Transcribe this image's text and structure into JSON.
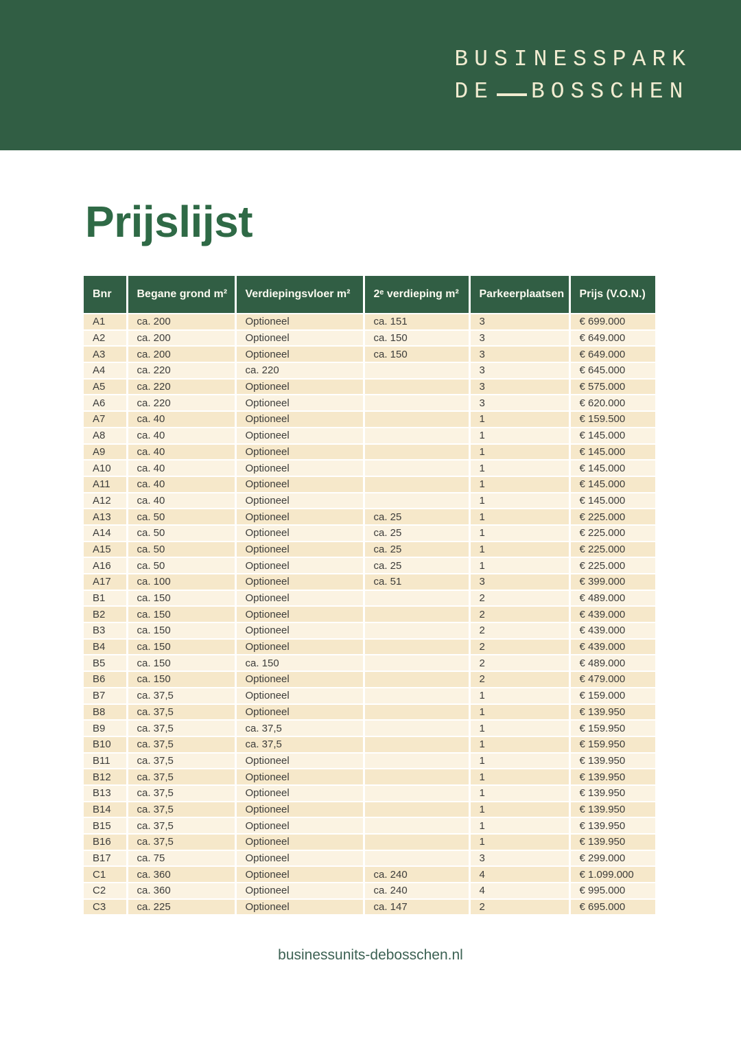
{
  "brand": {
    "line1": "BUSINESSPARK",
    "line2_prefix": "DE",
    "line2_suffix": "BOSSCHEN"
  },
  "page": {
    "title": "Prijslijst",
    "footer_link": "businessunits-debosschen.nl"
  },
  "colors": {
    "band_green": "#315e44",
    "logo_cream": "#f1ecd1",
    "title_green": "#2f6a46",
    "row_stripe_dark": "#f6e8ca",
    "row_stripe_light": "#fbf3e2",
    "header_text": "#fbfaf0",
    "body_text": "#3c3c3a",
    "footer_green": "#3c6153"
  },
  "table": {
    "column_keys": [
      "bnr",
      "begane-grond-m2",
      "verdiepingsvloer-m2",
      "tweede-verdieping-m2",
      "parkeerplaatsen",
      "prijs-von"
    ],
    "columns": [
      "Bnr",
      "Begane grond m²",
      "Verdiepingsvloer m²",
      "2ᵉ verdieping m²",
      "Parkeerplaatsen",
      "Prijs (V.O.N.)"
    ],
    "rows": [
      [
        "A1",
        "ca. 200",
        "Optioneel",
        "ca. 151",
        "3",
        "€ 699.000"
      ],
      [
        "A2",
        "ca. 200",
        "Optioneel",
        "ca. 150",
        "3",
        "€ 649.000"
      ],
      [
        "A3",
        "ca. 200",
        "Optioneel",
        "ca. 150",
        "3",
        "€ 649.000"
      ],
      [
        "A4",
        "ca. 220",
        "ca. 220",
        "",
        "3",
        "€ 645.000"
      ],
      [
        "A5",
        "ca. 220",
        "Optioneel",
        "",
        "3",
        "€ 575.000"
      ],
      [
        "A6",
        "ca. 220",
        "Optioneel",
        "",
        "3",
        "€ 620.000"
      ],
      [
        "A7",
        "ca. 40",
        "Optioneel",
        "",
        "1",
        "€ 159.500"
      ],
      [
        "A8",
        "ca. 40",
        "Optioneel",
        "",
        "1",
        "€ 145.000"
      ],
      [
        "A9",
        "ca. 40",
        "Optioneel",
        "",
        "1",
        "€ 145.000"
      ],
      [
        "A10",
        "ca. 40",
        "Optioneel",
        "",
        "1",
        "€ 145.000"
      ],
      [
        "A11",
        "ca. 40",
        "Optioneel",
        "",
        "1",
        "€ 145.000"
      ],
      [
        "A12",
        "ca. 40",
        "Optioneel",
        "",
        "1",
        "€ 145.000"
      ],
      [
        "A13",
        "ca. 50",
        "Optioneel",
        "ca. 25",
        "1",
        "€ 225.000"
      ],
      [
        "A14",
        "ca. 50",
        "Optioneel",
        "ca. 25",
        "1",
        "€ 225.000"
      ],
      [
        "A15",
        "ca. 50",
        "Optioneel",
        "ca. 25",
        "1",
        "€ 225.000"
      ],
      [
        "A16",
        "ca. 50",
        "Optioneel",
        "ca. 25",
        "1",
        "€ 225.000"
      ],
      [
        "A17",
        "ca. 100",
        "Optioneel",
        "ca. 51",
        "3",
        "€ 399.000"
      ],
      [
        "B1",
        "ca. 150",
        "Optioneel",
        "",
        "2",
        "€ 489.000"
      ],
      [
        "B2",
        "ca. 150",
        "Optioneel",
        "",
        "2",
        "€ 439.000"
      ],
      [
        "B3",
        "ca. 150",
        "Optioneel",
        "",
        "2",
        "€ 439.000"
      ],
      [
        "B4",
        "ca. 150",
        "Optioneel",
        "",
        "2",
        "€ 439.000"
      ],
      [
        "B5",
        "ca. 150",
        "ca. 150",
        "",
        "2",
        "€ 489.000"
      ],
      [
        "B6",
        "ca. 150",
        "Optioneel",
        "",
        "2",
        "€ 479.000"
      ],
      [
        "B7",
        "ca. 37,5",
        "Optioneel",
        "",
        "1",
        "€ 159.000"
      ],
      [
        "B8",
        "ca. 37,5",
        "Optioneel",
        "",
        "1",
        "€ 139.950"
      ],
      [
        "B9",
        "ca. 37,5",
        "ca. 37,5",
        "",
        "1",
        "€ 159.950"
      ],
      [
        "B10",
        "ca. 37,5",
        "ca. 37,5",
        "",
        "1",
        "€ 159.950"
      ],
      [
        "B11",
        "ca. 37,5",
        "Optioneel",
        "",
        "1",
        "€ 139.950"
      ],
      [
        "B12",
        "ca. 37,5",
        "Optioneel",
        "",
        "1",
        "€ 139.950"
      ],
      [
        "B13",
        "ca. 37,5",
        "Optioneel",
        "",
        "1",
        "€ 139.950"
      ],
      [
        "B14",
        "ca. 37,5",
        "Optioneel",
        "",
        "1",
        "€ 139.950"
      ],
      [
        "B15",
        "ca. 37,5",
        "Optioneel",
        "",
        "1",
        "€ 139.950"
      ],
      [
        "B16",
        "ca. 37,5",
        "Optioneel",
        "",
        "1",
        "€ 139.950"
      ],
      [
        "B17",
        "ca. 75",
        "Optioneel",
        "",
        "3",
        "€ 299.000"
      ],
      [
        "C1",
        "ca. 360",
        "Optioneel",
        "ca. 240",
        "4",
        "€ 1.099.000"
      ],
      [
        "C2",
        "ca. 360",
        "Optioneel",
        "ca. 240",
        "4",
        "€ 995.000"
      ],
      [
        "C3",
        "ca. 225",
        "Optioneel",
        "ca. 147",
        "2",
        "€ 695.000"
      ]
    ]
  }
}
